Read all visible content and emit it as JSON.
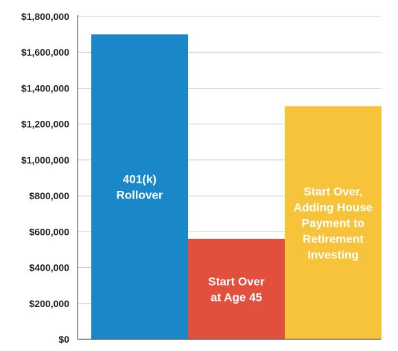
{
  "chart_data": {
    "type": "bar",
    "categories": [
      "401(k) Rollover",
      "Start Over at Age 45",
      "Start Over, Adding House Payment to Retirement Investing"
    ],
    "values": [
      1700000,
      560000,
      1300000
    ],
    "category_label_lines": [
      [
        "401(k)",
        "Rollover"
      ],
      [
        "Start Over",
        "at Age 45"
      ],
      [
        "Start Over,",
        "Adding House",
        "Payment to",
        "Retirement",
        "Investing"
      ]
    ],
    "bar_colors": [
      "#1a87c9",
      "#e0503c",
      "#f6c33b"
    ],
    "title": "",
    "xlabel": "",
    "ylabel": "",
    "ylim": [
      0,
      1800000
    ],
    "y_ticks": [
      0,
      200000,
      400000,
      600000,
      800000,
      1000000,
      1200000,
      1400000,
      1600000,
      1800000
    ],
    "y_tick_labels": [
      "$0",
      "$200,000",
      "$400,000",
      "$600,000",
      "$800,000",
      "$1,000,000",
      "$1,200,000",
      "$1,400,000",
      "$1,600,000",
      "$1,800,000"
    ],
    "grid": true,
    "legend": "none",
    "colors": {
      "grid": "#cccccc",
      "axis": "#555555",
      "tick_text": "#222222",
      "bar_text": "#ffffff"
    }
  }
}
